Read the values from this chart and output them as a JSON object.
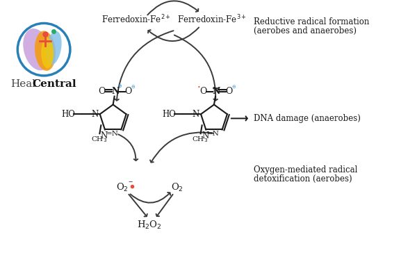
{
  "bg_color": "#ffffff",
  "ferredoxin_fe2_label": "Ferredoxin-Fe$^{2+}$",
  "ferredoxin_fe3_label": "Ferredoxin-Fe$^{3+}$",
  "dna_damage_label": "DNA damage (anaerobes)",
  "reductive_label_line1": "Reductive radical formation",
  "reductive_label_line2": "(aerobes and anaerobes)",
  "oxygen_label_line1": "Oxygen-mediated radical",
  "oxygen_label_line2": "detoxification (aerobes)",
  "o2_radical": "O$_2^{-}$",
  "o2_bullet_color": "#e74c3c",
  "o2": "O$_2$",
  "h2o2": "H$_2$O$_2$",
  "text_color": "#1a1a1a",
  "arrow_color": "#3a3a3a",
  "charge_color_plus": "#3498db",
  "charge_color_minus": "#3498db",
  "radical_color": "#e74c3c"
}
